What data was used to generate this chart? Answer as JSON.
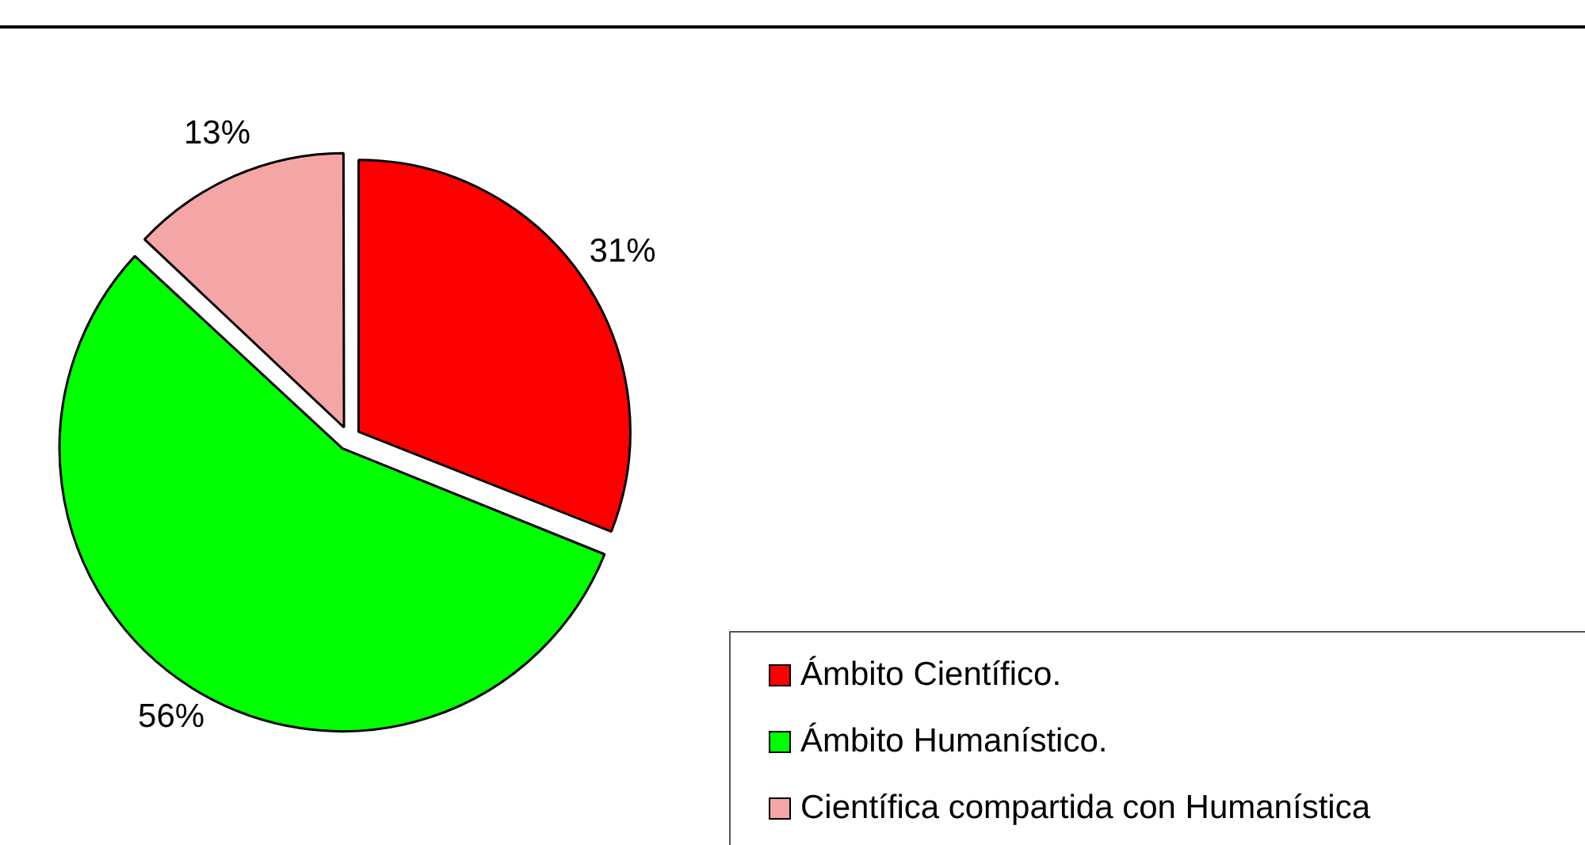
{
  "chart_data": {
    "type": "pie",
    "categories": [
      "Ámbito Científico.",
      "Ámbito Humanístico.",
      "Científica compartida con Humanística"
    ],
    "values": [
      31,
      56,
      13
    ],
    "colors": [
      "#ff0000",
      "#00ff00",
      "#f4a6a6"
    ],
    "value_labels": [
      "31%",
      "56%",
      "13%"
    ],
    "legend": "bottom right"
  }
}
